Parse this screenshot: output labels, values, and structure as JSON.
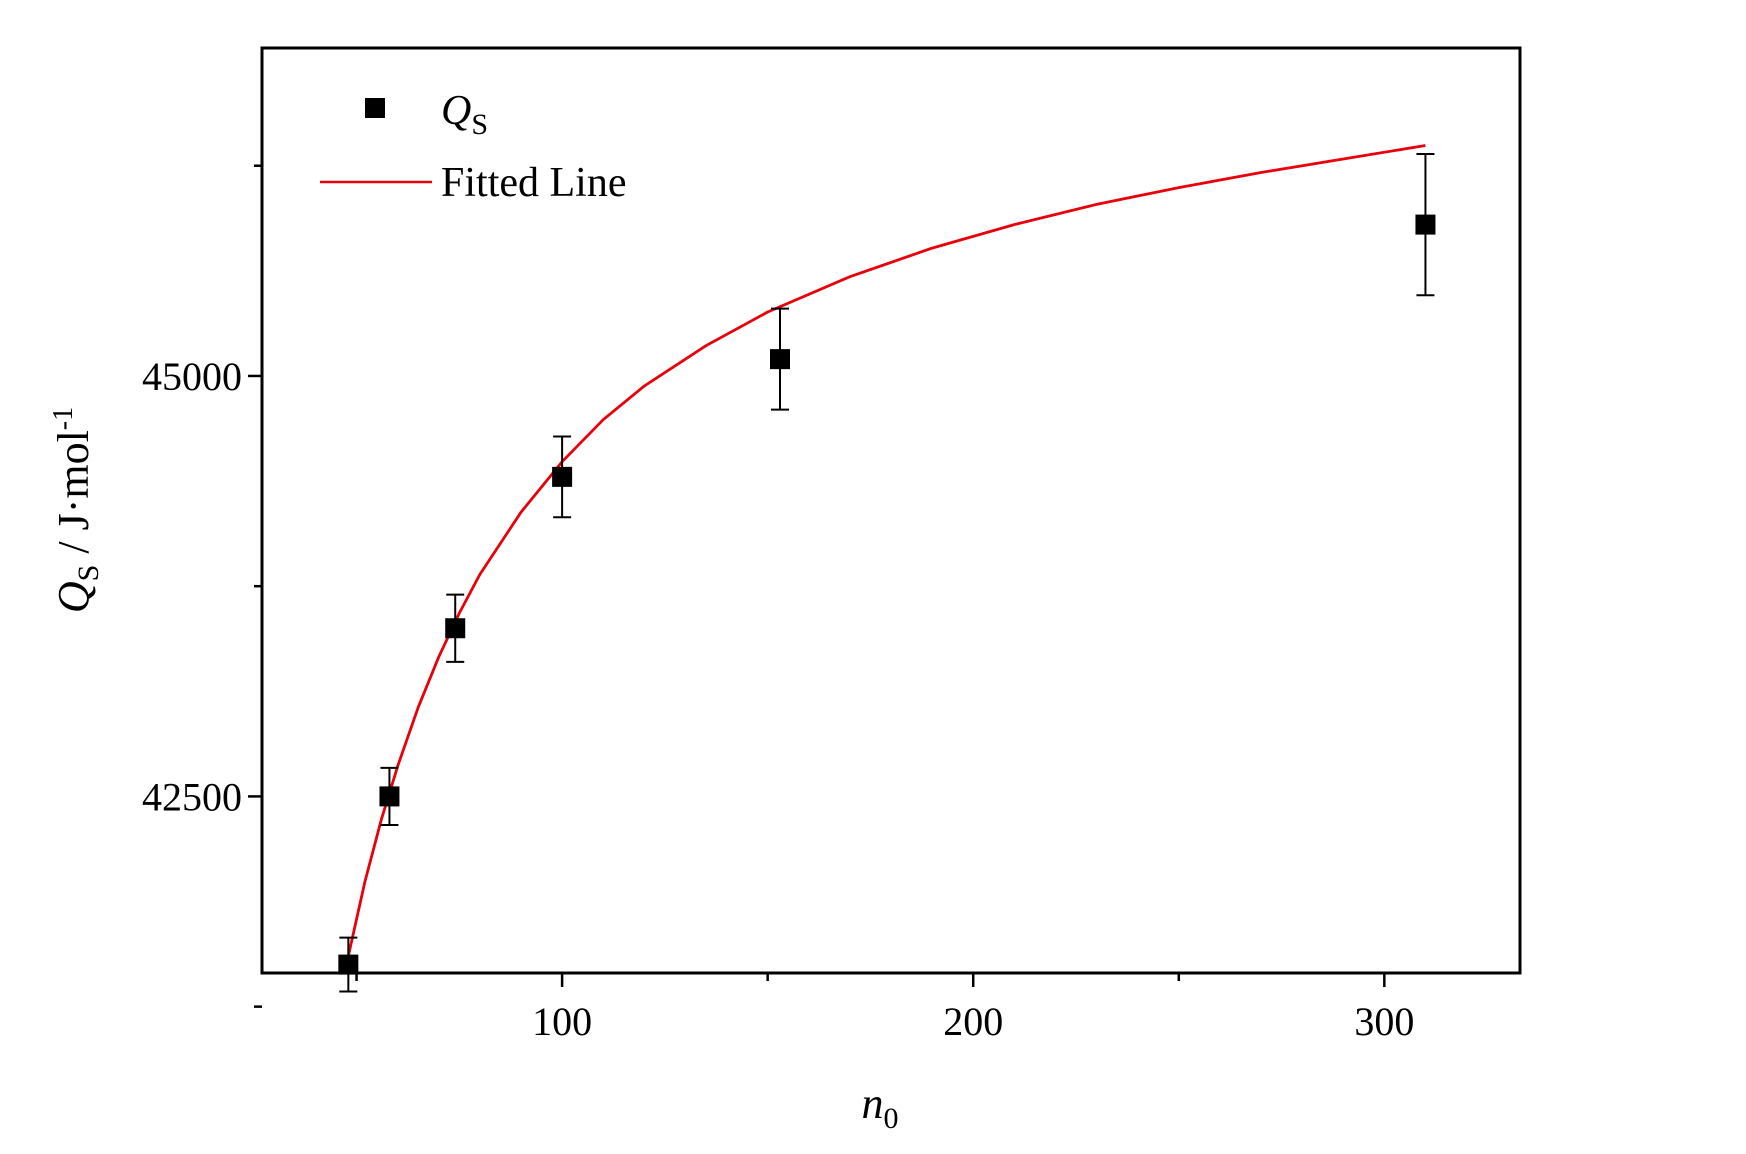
{
  "chart_data": {
    "type": "scatter",
    "title": "",
    "xlabel": {
      "main": "n",
      "sub": "0"
    },
    "ylabel": {
      "main": "Q",
      "sub": "S",
      "rest": " / J·mol",
      "sup": "-1"
    },
    "xlim": [
      27,
      333
    ],
    "ylim": [
      41450,
      46950
    ],
    "x_ticks_major": [
      100,
      200,
      300
    ],
    "x_ticks_minor": [
      50,
      150,
      250
    ],
    "y_ticks_major": [
      42500,
      45000
    ],
    "y_ticks_minor": [
      41250,
      43750,
      46250
    ],
    "grid": false,
    "legend_position": "top-left",
    "series": [
      {
        "name": "Q",
        "name_sub": "S",
        "kind": "points",
        "color": "#000000",
        "x": [
          48,
          58,
          74,
          100,
          153,
          310
        ],
        "y": [
          41500,
          42500,
          43500,
          44400,
          45100,
          45900
        ],
        "err": [
          160,
          170,
          200,
          240,
          300,
          420
        ]
      },
      {
        "name": "Fitted Line",
        "kind": "line",
        "color": "#e8000b",
        "x": [
          48,
          52,
          56,
          60,
          65,
          70,
          75,
          80,
          90,
          100,
          110,
          120,
          135,
          150,
          170,
          190,
          210,
          230,
          250,
          270,
          290,
          310
        ],
        "y": [
          41550,
          41990,
          42360,
          42680,
          43030,
          43330,
          43590,
          43820,
          44190,
          44490,
          44740,
          44940,
          45180,
          45380,
          45590,
          45760,
          45900,
          46020,
          46120,
          46210,
          46290,
          46370
        ]
      }
    ]
  }
}
